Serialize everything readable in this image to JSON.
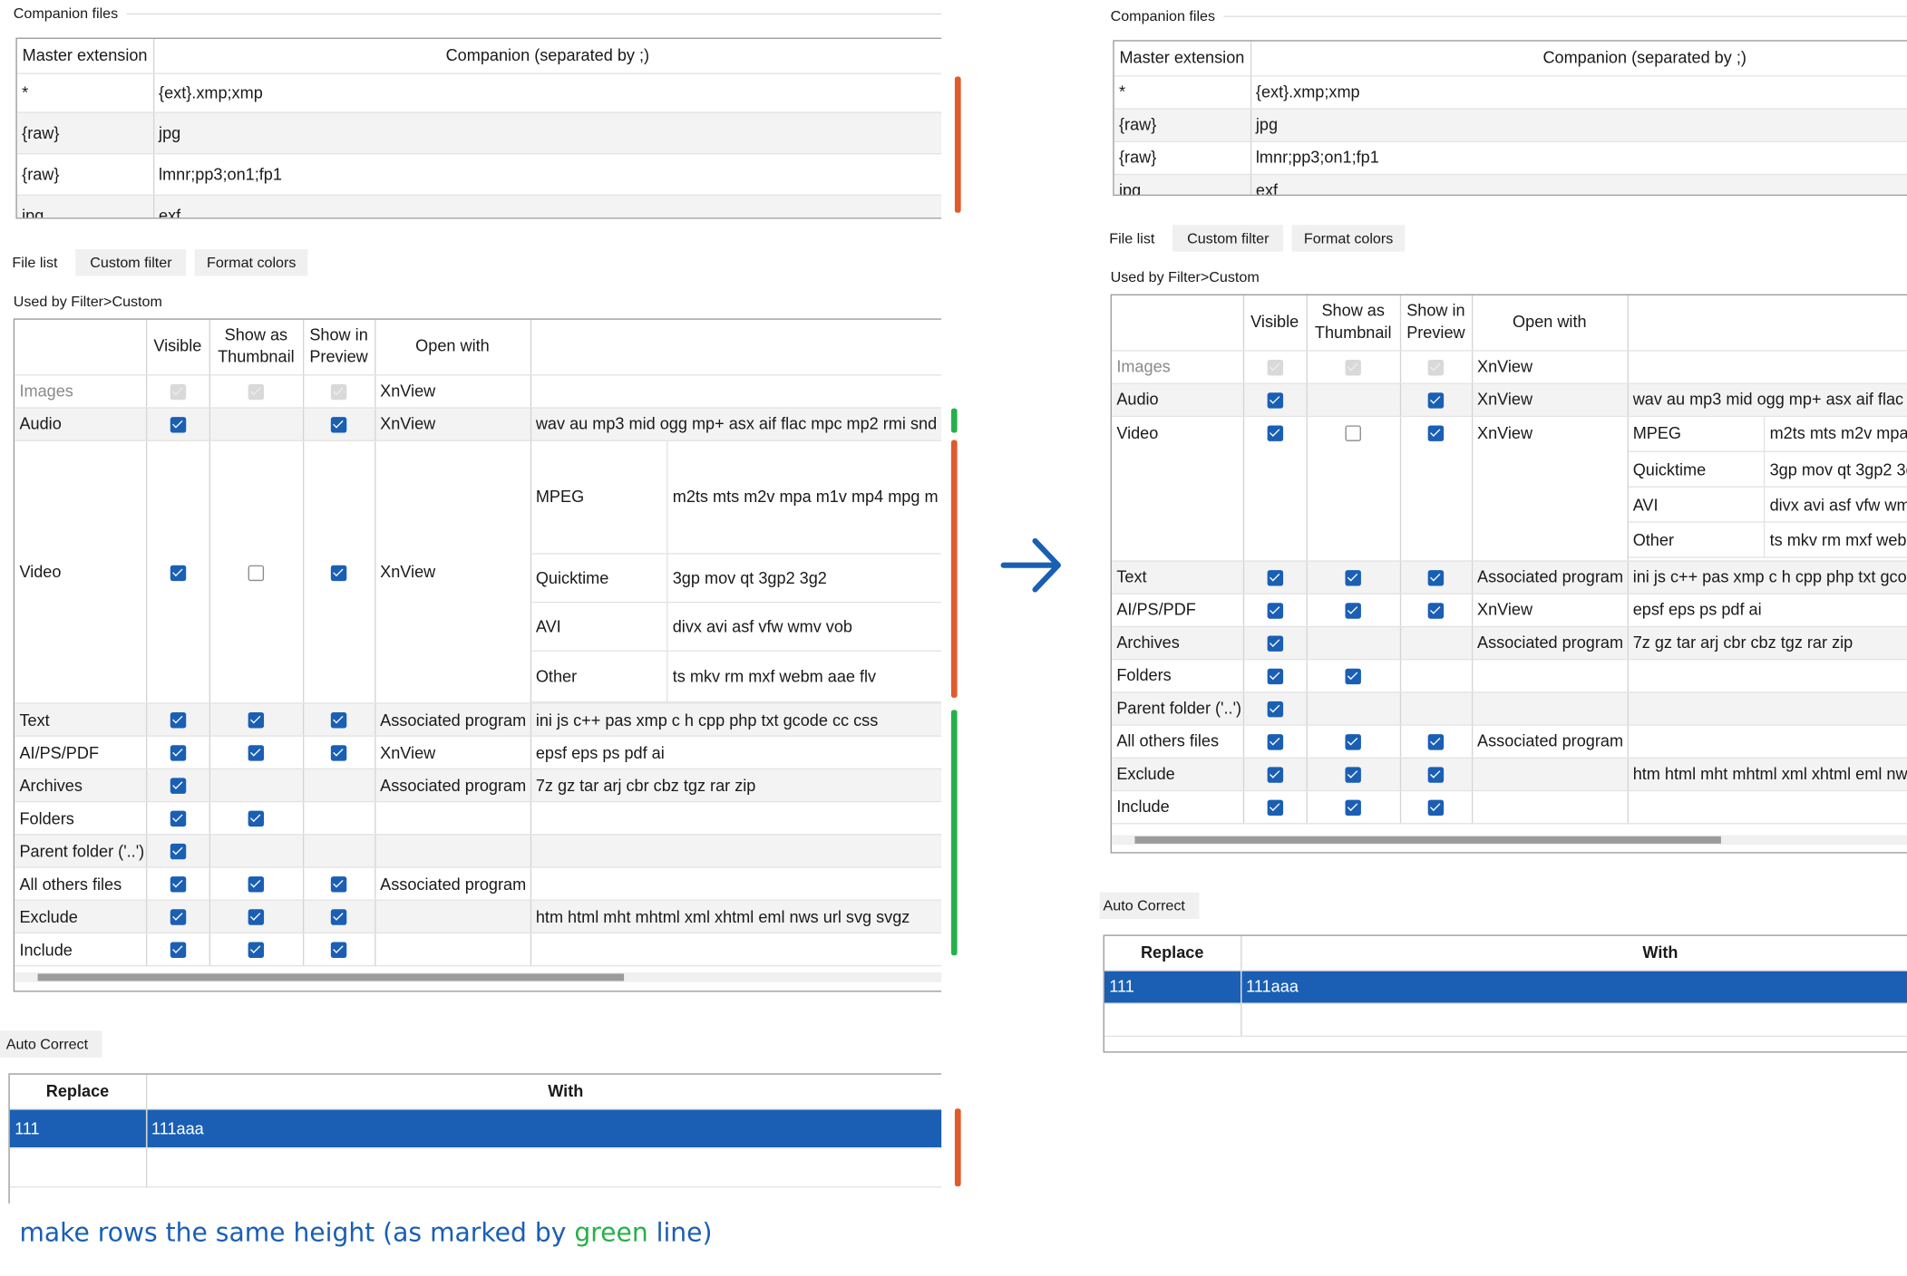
{
  "companion": {
    "title": "Companion files",
    "headers": [
      "Master extension",
      "Companion (separated by ;)"
    ],
    "rows": [
      [
        "*",
        "{ext}.xmp;xmp"
      ],
      [
        "{raw}",
        "jpg"
      ],
      [
        "{raw}",
        "lmnr;pp3;on1;fp1"
      ],
      [
        "jpg",
        "exf"
      ]
    ]
  },
  "tabs": {
    "file_list": "File list",
    "custom_filter": "Custom filter",
    "format_colors": "Format colors"
  },
  "filter": {
    "title": "Used by Filter>Custom",
    "headers": {
      "visible": "Visible",
      "thumbnail": "Show as Thumbnail",
      "preview": "Show in Preview",
      "open_with": "Open with"
    },
    "rows": [
      {
        "name": "Images",
        "visible": "disabled",
        "thumb": "disabled",
        "preview": "disabled",
        "open": "XnView",
        "ext": ""
      },
      {
        "name": "Audio",
        "visible": "checked",
        "thumb": "none",
        "preview": "checked",
        "open": "XnView",
        "ext": "wav au mp3 mid ogg mp+ asx aif flac mpc mp2 rmi snd"
      },
      {
        "name": "Video",
        "visible": "checked",
        "thumb": "unchecked",
        "preview": "checked",
        "open": "XnView",
        "ext": ""
      },
      {
        "name": "Text",
        "visible": "checked",
        "thumb": "checked",
        "preview": "checked",
        "open": "Associated program",
        "ext": "ini js c++ pas xmp c h cpp php txt gcode cc css"
      },
      {
        "name": "AI/PS/PDF",
        "visible": "checked",
        "thumb": "checked",
        "preview": "checked",
        "open": "XnView",
        "ext": "epsf eps ps pdf ai"
      },
      {
        "name": "Archives",
        "visible": "checked",
        "thumb": "none",
        "preview": "none",
        "open": "Associated program",
        "ext": "7z gz tar arj cbr cbz tgz rar zip"
      },
      {
        "name": "Folders",
        "visible": "checked",
        "thumb": "checked",
        "preview": "none",
        "open": "",
        "ext": ""
      },
      {
        "name": "Parent folder ('..')",
        "visible": "checked",
        "thumb": "none",
        "preview": "none",
        "open": "",
        "ext": ""
      },
      {
        "name": "All others files",
        "visible": "checked",
        "thumb": "checked",
        "preview": "checked",
        "open": "Associated program",
        "ext": ""
      },
      {
        "name": "Exclude",
        "visible": "checked",
        "thumb": "checked",
        "preview": "checked",
        "open": "",
        "ext": "htm html mht mhtml xml xhtml eml nws url svg svgz"
      },
      {
        "name": "Include",
        "visible": "checked",
        "thumb": "checked",
        "preview": "checked",
        "open": "",
        "ext": ""
      }
    ],
    "video_sub": [
      [
        "MPEG",
        "m2ts mts m2v mpa m1v mp4 mpg m"
      ],
      [
        "Quicktime",
        "3gp mov qt 3gp2 3g2"
      ],
      [
        "AVI",
        "divx avi asf vfw wmv vob"
      ],
      [
        "Other",
        "ts mkv rm mxf webm aae flv"
      ]
    ]
  },
  "autocorrect": {
    "title": "Auto Correct",
    "headers": [
      "Replace",
      "With"
    ],
    "rows": [
      [
        "111",
        "111aaa"
      ]
    ]
  },
  "arrow_icon": "right-arrow-icon",
  "note": {
    "part1": "make rows the same height (as marked by ",
    "green_word": "green",
    "part2": " line)"
  },
  "colors": {
    "accent": "#1a5fb4",
    "red_mark": "#e05a2b",
    "green_mark": "#27b04a",
    "note_blue": "#1a5fb4"
  }
}
